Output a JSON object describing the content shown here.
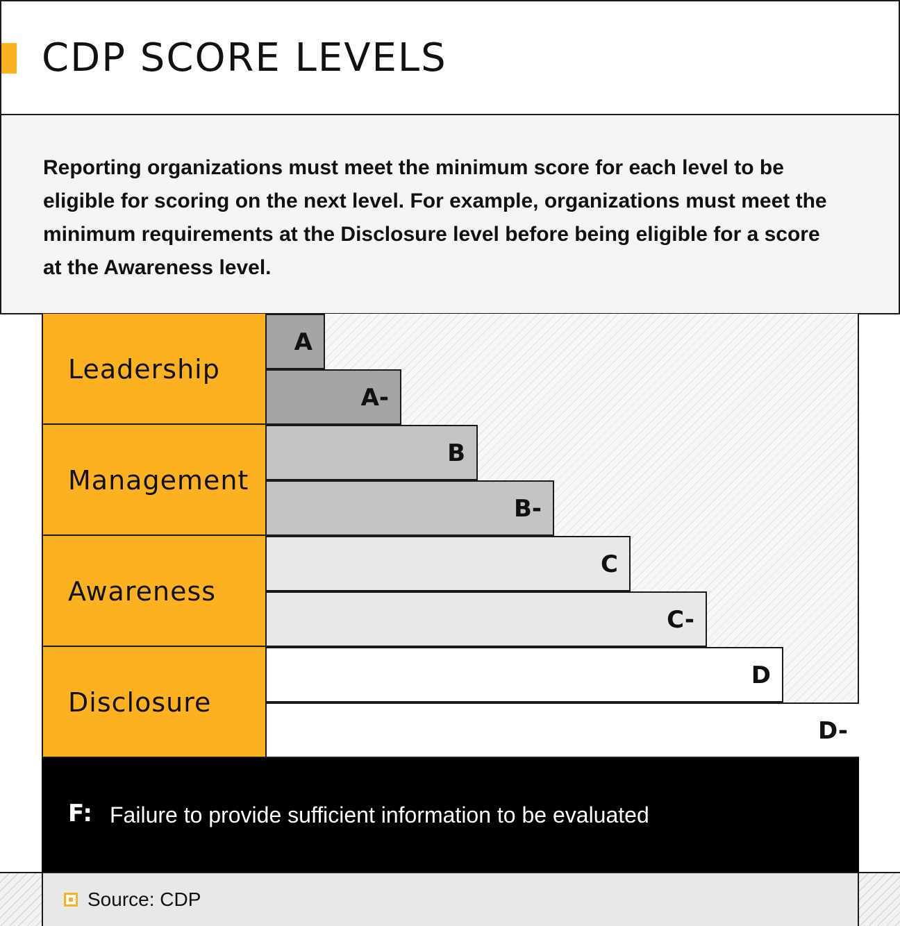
{
  "header": {
    "title": "CDP SCORE LEVELS"
  },
  "intro": {
    "text": "Reporting organizations must meet the minimum score for each level to be eligible for scoring on the next level. For example, organizations must meet the minimum requirements at the Disclosure level before being eligible for a score at the Awareness level."
  },
  "levels": [
    {
      "label": "Leadership"
    },
    {
      "label": "Management"
    },
    {
      "label": "Awareness"
    },
    {
      "label": "Disclosure"
    }
  ],
  "scores": [
    {
      "label": "A",
      "color": "#a5a5a5"
    },
    {
      "label": "A-",
      "color": "#a5a5a5"
    },
    {
      "label": "B",
      "color": "#c4c4c4"
    },
    {
      "label": "B-",
      "color": "#c4c4c4"
    },
    {
      "label": "C",
      "color": "#e8e8e8"
    },
    {
      "label": "C-",
      "color": "#e8e8e8"
    },
    {
      "label": "D",
      "color": "#ffffff"
    },
    {
      "label": "D-",
      "color": "#ffffff"
    }
  ],
  "failure": {
    "letter": "F:",
    "text": "Failure to provide sufficient information to be evaluated"
  },
  "source": {
    "text": "Source: CDP"
  },
  "colors": {
    "accent": "#fbb120",
    "failure_bg": "#000000"
  }
}
